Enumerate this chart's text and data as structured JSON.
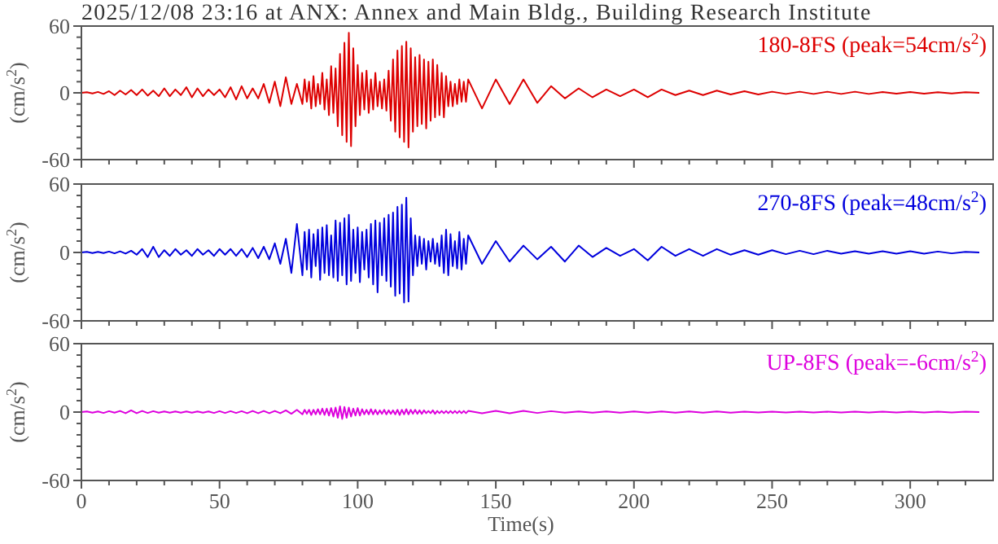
{
  "chart_data": [
    {
      "type": "line",
      "title": "2025/12/08 23:16 at ANX: Annex and Main Bldg., Building Research Institute",
      "ylabel": "(cm/s$^{2}$)",
      "tick_labels": "y",
      "legend": "top right",
      "xlim": [
        0,
        330
      ],
      "xticks": [
        0,
        {
          "value": 10,
          "label": null
        },
        {
          "value": 20,
          "label": null
        },
        {
          "value": 30,
          "label": null
        },
        {
          "value": 40,
          "label": null
        },
        50,
        {
          "value": 60,
          "label": null
        },
        {
          "value": 70,
          "label": null
        },
        {
          "value": 80,
          "label": null
        },
        {
          "value": 90,
          "label": null
        },
        100,
        {
          "value": 110,
          "label": null
        },
        {
          "value": 120,
          "label": null
        },
        {
          "value": 130,
          "label": null
        },
        {
          "value": 140,
          "label": null
        },
        150,
        {
          "value": 160,
          "label": null
        },
        {
          "value": 170,
          "label": null
        },
        {
          "value": 180,
          "label": null
        },
        {
          "value": 190,
          "label": null
        },
        200,
        {
          "value": 210,
          "label": null
        },
        {
          "value": 220,
          "label": null
        },
        {
          "value": 230,
          "label": null
        },
        {
          "value": 240,
          "label": null
        },
        250,
        {
          "value": 260,
          "label": null
        },
        {
          "value": 270,
          "label": null
        },
        {
          "value": 280,
          "label": null
        },
        {
          "value": 290,
          "label": null
        },
        300,
        {
          "value": 310,
          "label": null
        },
        {
          "value": 320,
          "label": null
        }
      ],
      "ylim": [
        -60,
        60
      ],
      "yticks": [
        -60,
        {
          "value": -50,
          "label": null
        },
        {
          "value": -40,
          "label": null
        },
        {
          "value": -30,
          "label": null
        },
        {
          "value": -20,
          "label": null
        },
        {
          "value": -10,
          "label": null
        },
        0,
        {
          "value": 10,
          "label": null
        },
        {
          "value": 20,
          "label": null
        },
        {
          "value": 30,
          "label": null
        },
        {
          "value": 40,
          "label": null
        },
        {
          "value": 50,
          "label": null
        },
        60
      ],
      "x": [
        0,
        2,
        4,
        6,
        8,
        10,
        12,
        14,
        16,
        18,
        20,
        22,
        24,
        26,
        28,
        30,
        32,
        34,
        36,
        38,
        40,
        42,
        44,
        46,
        48,
        50,
        52,
        54,
        56,
        58,
        60,
        62,
        64,
        66,
        68,
        70,
        72,
        74,
        76,
        78,
        80,
        80.8,
        81.6,
        82.4,
        83.2,
        84,
        84.8,
        85.6,
        86.4,
        87.2,
        88,
        88.8,
        89.6,
        90.4,
        91.2,
        92,
        92.8,
        93.6,
        94.4,
        95.2,
        96,
        96.8,
        97.6,
        98.4,
        99.2,
        100,
        100.8,
        101.6,
        102.4,
        103.2,
        104,
        104.8,
        105.6,
        106.4,
        107.2,
        108,
        108.8,
        109.6,
        110.4,
        111.2,
        112,
        112.8,
        113.6,
        114.4,
        115.2,
        116,
        116.8,
        117.6,
        118.4,
        119.2,
        120,
        120.8,
        121.6,
        122.4,
        123.2,
        124,
        124.8,
        125.6,
        126.4,
        127.2,
        128,
        128.8,
        129.6,
        130.4,
        131.2,
        132,
        132.8,
        133.6,
        134.4,
        135.2,
        136,
        136.8,
        137.6,
        138.4,
        139.2,
        140,
        145,
        150,
        155,
        160,
        165,
        170,
        175,
        180,
        185,
        190,
        195,
        200,
        205,
        210,
        215,
        220,
        225,
        230,
        235,
        240,
        245,
        250,
        255,
        260,
        265,
        270,
        275,
        280,
        285,
        290,
        295,
        300,
        305,
        310,
        315,
        320,
        325
      ],
      "series": [
        {
          "name": "180-8FS (peak=54cm/s$^{2}$)",
          "color": "#dd0000",
          "values": [
            0,
            0.5,
            -0.5,
            0.8,
            -1,
            1.5,
            -2,
            2,
            -1.5,
            2.5,
            -2,
            3,
            -2.5,
            2,
            -3,
            4,
            -3,
            3,
            -2,
            5,
            -4,
            4,
            -3,
            3,
            -2,
            3,
            -4,
            5,
            -6,
            6,
            -5,
            4,
            -5,
            8,
            -9,
            10,
            -12,
            14,
            -10,
            8,
            -10,
            12,
            -8,
            10,
            -14,
            15,
            -12,
            8,
            -10,
            18,
            -15,
            12,
            -20,
            24,
            -18,
            22,
            -30,
            35,
            -38,
            45,
            -44,
            54,
            -48,
            40,
            -30,
            25,
            -20,
            18,
            -15,
            20,
            -18,
            12,
            -15,
            18,
            -12,
            10,
            -14,
            12,
            -16,
            20,
            -25,
            30,
            -35,
            38,
            -40,
            42,
            -44,
            46,
            -49,
            40,
            -35,
            32,
            -30,
            34,
            -28,
            30,
            -32,
            28,
            -25,
            30,
            -22,
            25,
            -20,
            18,
            -22,
            15,
            -12,
            10,
            -12,
            8,
            -10,
            12,
            -8,
            10,
            -8,
            12,
            -14,
            12,
            -10,
            12,
            -9,
            6,
            -5,
            4,
            -4,
            3,
            -3,
            3,
            -4,
            3,
            -2,
            2,
            -2,
            2,
            -1.5,
            1.5,
            -1.5,
            1,
            -1,
            1,
            -1,
            1,
            -1,
            1,
            -1,
            0.8,
            -0.8,
            0.8,
            -0.8,
            0.5,
            -0.5,
            0.5,
            0
          ]
        }
      ]
    },
    {
      "type": "line",
      "ylabel": "(cm/s$^{2}$)",
      "tick_labels": "y",
      "legend": "top right",
      "xlim": [
        0,
        330
      ],
      "xticks": [
        0,
        {
          "value": 10,
          "label": null
        },
        {
          "value": 20,
          "label": null
        },
        {
          "value": 30,
          "label": null
        },
        {
          "value": 40,
          "label": null
        },
        50,
        {
          "value": 60,
          "label": null
        },
        {
          "value": 70,
          "label": null
        },
        {
          "value": 80,
          "label": null
        },
        {
          "value": 90,
          "label": null
        },
        100,
        {
          "value": 110,
          "label": null
        },
        {
          "value": 120,
          "label": null
        },
        {
          "value": 130,
          "label": null
        },
        {
          "value": 140,
          "label": null
        },
        150,
        {
          "value": 160,
          "label": null
        },
        {
          "value": 170,
          "label": null
        },
        {
          "value": 180,
          "label": null
        },
        {
          "value": 190,
          "label": null
        },
        200,
        {
          "value": 210,
          "label": null
        },
        {
          "value": 220,
          "label": null
        },
        {
          "value": 230,
          "label": null
        },
        {
          "value": 240,
          "label": null
        },
        250,
        {
          "value": 260,
          "label": null
        },
        {
          "value": 270,
          "label": null
        },
        {
          "value": 280,
          "label": null
        },
        {
          "value": 290,
          "label": null
        },
        300,
        {
          "value": 310,
          "label": null
        },
        {
          "value": 320,
          "label": null
        }
      ],
      "ylim": [
        -60,
        60
      ],
      "yticks": [
        -60,
        {
          "value": -50,
          "label": null
        },
        {
          "value": -40,
          "label": null
        },
        {
          "value": -30,
          "label": null
        },
        {
          "value": -20,
          "label": null
        },
        {
          "value": -10,
          "label": null
        },
        0,
        {
          "value": 10,
          "label": null
        },
        {
          "value": 20,
          "label": null
        },
        {
          "value": 30,
          "label": null
        },
        {
          "value": 40,
          "label": null
        },
        {
          "value": 50,
          "label": null
        },
        60
      ],
      "x": [
        0,
        2,
        4,
        6,
        8,
        10,
        12,
        14,
        16,
        18,
        20,
        22,
        24,
        26,
        28,
        30,
        32,
        34,
        36,
        38,
        40,
        42,
        44,
        46,
        48,
        50,
        52,
        54,
        56,
        58,
        60,
        62,
        64,
        66,
        68,
        70,
        72,
        74,
        76,
        78,
        80,
        80.8,
        81.6,
        82.4,
        83.2,
        84,
        84.8,
        85.6,
        86.4,
        87.2,
        88,
        88.8,
        89.6,
        90.4,
        91.2,
        92,
        92.8,
        93.6,
        94.4,
        95.2,
        96,
        96.8,
        97.6,
        98.4,
        99.2,
        100,
        100.8,
        101.6,
        102.4,
        103.2,
        104,
        104.8,
        105.6,
        106.4,
        107.2,
        108,
        108.8,
        109.6,
        110.4,
        111.2,
        112,
        112.8,
        113.6,
        114.4,
        115.2,
        116,
        116.8,
        117.6,
        118.4,
        119.2,
        120,
        120.8,
        121.6,
        122.4,
        123.2,
        124,
        124.8,
        125.6,
        126.4,
        127.2,
        128,
        128.8,
        129.6,
        130.4,
        131.2,
        132,
        132.8,
        133.6,
        134.4,
        135.2,
        136,
        136.8,
        137.6,
        138.4,
        139.2,
        140,
        145,
        150,
        155,
        160,
        165,
        170,
        175,
        180,
        185,
        190,
        195,
        200,
        205,
        210,
        215,
        220,
        225,
        230,
        235,
        240,
        245,
        250,
        255,
        260,
        265,
        270,
        275,
        280,
        285,
        290,
        295,
        300,
        305,
        310,
        315,
        320,
        325
      ],
      "series": [
        {
          "name": "270-8FS (peak=48cm/s$^{2}$)",
          "color": "#0000dd",
          "values": [
            0,
            0.5,
            -0.5,
            0.5,
            -0.5,
            0.8,
            -0.8,
            1,
            -1,
            1.5,
            -2,
            3,
            -4,
            5,
            -4,
            2,
            -3,
            3,
            -2,
            2,
            -3,
            3,
            -2,
            2,
            -3,
            3,
            -2,
            3,
            -3,
            3,
            -4,
            4,
            -5,
            5,
            -6,
            8,
            -10,
            12,
            -18,
            25,
            -20,
            18,
            -15,
            20,
            -22,
            16,
            -12,
            20,
            -24,
            22,
            -18,
            24,
            -20,
            15,
            -22,
            28,
            -25,
            26,
            -20,
            30,
            -28,
            33,
            -25,
            20,
            -18,
            22,
            -26,
            18,
            -15,
            20,
            -22,
            25,
            -28,
            28,
            -35,
            26,
            -20,
            30,
            -25,
            33,
            -30,
            35,
            -38,
            40,
            -36,
            42,
            -44,
            48,
            -43,
            30,
            -20,
            15,
            -12,
            14,
            -10,
            12,
            -15,
            10,
            -8,
            12,
            -10,
            8,
            -12,
            15,
            -18,
            20,
            -20,
            16,
            -12,
            10,
            -14,
            18,
            -15,
            12,
            -10,
            15,
            -10,
            10,
            -8,
            6,
            -6,
            5,
            -8,
            6,
            -4,
            4,
            -3,
            3,
            -7,
            5,
            -3,
            3,
            -3,
            3,
            -2,
            2,
            -2,
            2,
            -1.5,
            1.5,
            -1.5,
            1.5,
            -1,
            1,
            -1,
            1,
            -1,
            1,
            -1,
            0.8,
            -0.8,
            0.5,
            0
          ]
        }
      ]
    },
    {
      "type": "line",
      "ylabel": "(cm/s$^{2}$)",
      "xlabel": "Time(s)",
      "legend": "top right",
      "xlim": [
        0,
        330
      ],
      "xticks": [
        0,
        {
          "value": 10,
          "label": null
        },
        {
          "value": 20,
          "label": null
        },
        {
          "value": 30,
          "label": null
        },
        {
          "value": 40,
          "label": null
        },
        50,
        {
          "value": 60,
          "label": null
        },
        {
          "value": 70,
          "label": null
        },
        {
          "value": 80,
          "label": null
        },
        {
          "value": 90,
          "label": null
        },
        100,
        {
          "value": 110,
          "label": null
        },
        {
          "value": 120,
          "label": null
        },
        {
          "value": 130,
          "label": null
        },
        {
          "value": 140,
          "label": null
        },
        150,
        {
          "value": 160,
          "label": null
        },
        {
          "value": 170,
          "label": null
        },
        {
          "value": 180,
          "label": null
        },
        {
          "value": 190,
          "label": null
        },
        200,
        {
          "value": 210,
          "label": null
        },
        {
          "value": 220,
          "label": null
        },
        {
          "value": 230,
          "label": null
        },
        {
          "value": 240,
          "label": null
        },
        250,
        {
          "value": 260,
          "label": null
        },
        {
          "value": 270,
          "label": null
        },
        {
          "value": 280,
          "label": null
        },
        {
          "value": 290,
          "label": null
        },
        300,
        {
          "value": 310,
          "label": null
        },
        {
          "value": 320,
          "label": null
        }
      ],
      "ylim": [
        -60,
        60
      ],
      "yticks": [
        -60,
        {
          "value": -50,
          "label": null
        },
        {
          "value": -40,
          "label": null
        },
        {
          "value": -30,
          "label": null
        },
        {
          "value": -20,
          "label": null
        },
        {
          "value": -10,
          "label": null
        },
        0,
        {
          "value": 10,
          "label": null
        },
        {
          "value": 20,
          "label": null
        },
        {
          "value": 30,
          "label": null
        },
        {
          "value": 40,
          "label": null
        },
        {
          "value": 50,
          "label": null
        },
        60
      ],
      "x": [
        0,
        2,
        4,
        6,
        8,
        10,
        12,
        14,
        16,
        18,
        20,
        22,
        24,
        26,
        28,
        30,
        32,
        34,
        36,
        38,
        40,
        42,
        44,
        46,
        48,
        50,
        52,
        54,
        56,
        58,
        60,
        62,
        64,
        66,
        68,
        70,
        72,
        74,
        76,
        78,
        80,
        80.8,
        81.6,
        82.4,
        83.2,
        84,
        84.8,
        85.6,
        86.4,
        87.2,
        88,
        88.8,
        89.6,
        90.4,
        91.2,
        92,
        92.8,
        93.6,
        94.4,
        95.2,
        96,
        96.8,
        97.6,
        98.4,
        99.2,
        100,
        100.8,
        101.6,
        102.4,
        103.2,
        104,
        104.8,
        105.6,
        106.4,
        107.2,
        108,
        108.8,
        109.6,
        110.4,
        111.2,
        112,
        112.8,
        113.6,
        114.4,
        115.2,
        116,
        116.8,
        117.6,
        118.4,
        119.2,
        120,
        120.8,
        121.6,
        122.4,
        123.2,
        124,
        124.8,
        125.6,
        126.4,
        127.2,
        128,
        128.8,
        129.6,
        130.4,
        131.2,
        132,
        132.8,
        133.6,
        134.4,
        135.2,
        136,
        136.8,
        137.6,
        138.4,
        139.2,
        140,
        145,
        150,
        155,
        160,
        165,
        170,
        175,
        180,
        185,
        190,
        195,
        200,
        205,
        210,
        215,
        220,
        225,
        230,
        235,
        240,
        245,
        250,
        255,
        260,
        265,
        270,
        275,
        280,
        285,
        290,
        295,
        300,
        305,
        310,
        315,
        320,
        325
      ],
      "series": [
        {
          "name": "UP-8FS (peak=-6cm/s$^{2}$)",
          "color": "#dd00dd",
          "values": [
            0,
            0.5,
            -0.5,
            0.5,
            -0.8,
            0.8,
            -0.5,
            1,
            -1,
            1.5,
            -1,
            1,
            -0.8,
            0.8,
            -0.5,
            0.5,
            -0.5,
            0.5,
            -0.5,
            0.5,
            -0.5,
            0.5,
            -0.5,
            0.5,
            -0.8,
            0.8,
            -0.8,
            0.8,
            -0.8,
            0.8,
            -1,
            1,
            -1,
            1,
            -1,
            1,
            -1,
            1.5,
            -1.5,
            2,
            -2,
            2,
            -1.5,
            2,
            -2.5,
            2,
            -2,
            2.5,
            -2,
            3,
            -2.5,
            3,
            -3,
            3.5,
            -4,
            4,
            -5,
            5,
            -6,
            4.5,
            -5,
            4,
            -4,
            3,
            -3,
            3.5,
            -3,
            2.5,
            -2,
            2,
            -2,
            2.5,
            -2,
            2,
            -2,
            1.5,
            -1.5,
            2,
            -2,
            1.5,
            -1.5,
            1.5,
            -2,
            2,
            -2.5,
            2,
            -2,
            2.5,
            -2,
            2,
            -1.5,
            2,
            -1.5,
            1.5,
            -1.5,
            1.5,
            -1,
            1,
            -1,
            1.5,
            -1.5,
            1,
            -1,
            1,
            -1,
            1,
            -1,
            1,
            -1,
            1,
            -1,
            1,
            -1,
            1,
            -1,
            1,
            -1,
            1,
            -1,
            1,
            -0.8,
            0.8,
            -0.5,
            0.5,
            -0.5,
            0.5,
            -0.5,
            0.5,
            -0.5,
            0.5,
            -0.5,
            0.5,
            -0.5,
            0.5,
            -0.5,
            0.3,
            -0.3,
            0.3,
            -0.3,
            0.3,
            -0.3,
            0.3,
            -0.3,
            0.3,
            -0.3,
            0.3,
            -0.3,
            0.3,
            -0.3,
            0.3,
            -0.3,
            0.3,
            0
          ]
        }
      ]
    }
  ]
}
